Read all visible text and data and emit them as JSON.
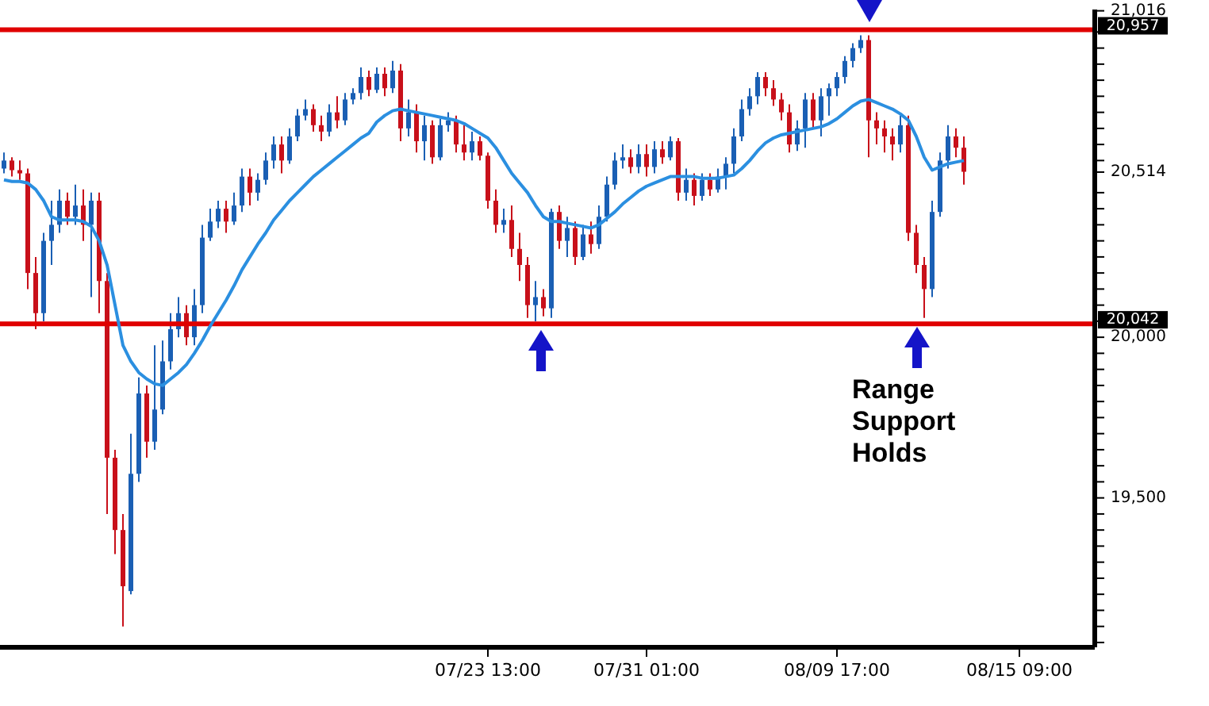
{
  "chart_data": {
    "type": "candlestick",
    "categories": [
      null,
      null,
      null,
      null,
      null,
      null,
      null,
      null,
      null,
      null,
      null,
      null,
      null,
      null,
      null,
      null,
      null,
      null,
      null,
      null,
      null,
      null,
      null,
      null,
      null,
      null,
      null,
      null,
      null,
      null,
      null,
      null,
      null,
      null,
      null,
      null,
      null,
      null,
      null,
      null,
      null,
      null,
      null,
      null,
      null,
      null,
      null,
      null,
      null,
      null,
      null,
      null,
      null,
      null,
      null,
      null,
      null,
      null,
      null,
      null,
      null,
      "07/23 13:00",
      null,
      null,
      null,
      null,
      null,
      null,
      null,
      null,
      null,
      null,
      null,
      null,
      null,
      null,
      null,
      null,
      null,
      null,
      null,
      "07/31 01:00",
      null,
      null,
      null,
      null,
      null,
      null,
      null,
      null,
      null,
      null,
      null,
      null,
      null,
      null,
      null,
      null,
      null,
      null,
      null,
      null,
      null,
      null,
      null,
      "08/09 17:00",
      null,
      null,
      null,
      null,
      null,
      null,
      null,
      null,
      null,
      null,
      null,
      null,
      null,
      null,
      null,
      null,
      null,
      null,
      null,
      null,
      null,
      null,
      "08/15 09:00",
      null,
      null,
      null,
      null,
      null,
      null,
      null,
      null,
      null
    ],
    "ohlc": [
      [
        20525,
        20575,
        20510,
        20550
      ],
      [
        20550,
        20560,
        20500,
        20520
      ],
      [
        20520,
        20550,
        20490,
        20510
      ],
      [
        20510,
        20525,
        20150,
        20200
      ],
      [
        20200,
        20250,
        20025,
        20075
      ],
      [
        20075,
        20325,
        20050,
        20300
      ],
      [
        20300,
        20425,
        20225,
        20350
      ],
      [
        20350,
        20460,
        20325,
        20425
      ],
      [
        20425,
        20450,
        20350,
        20375
      ],
      [
        20375,
        20475,
        20350,
        20410
      ],
      [
        20410,
        20460,
        20300,
        20350
      ],
      [
        20350,
        20450,
        20125,
        20425
      ],
      [
        20425,
        20450,
        20075,
        20175
      ],
      [
        20175,
        20200,
        19450,
        19625
      ],
      [
        19625,
        19650,
        19325,
        19400
      ],
      [
        19400,
        19450,
        19100,
        19225
      ],
      [
        19210,
        19700,
        19200,
        19575
      ],
      [
        19575,
        19875,
        19550,
        19825
      ],
      [
        19825,
        19850,
        19625,
        19675
      ],
      [
        19675,
        19975,
        19650,
        19775
      ],
      [
        19775,
        19990,
        19760,
        19925
      ],
      [
        19925,
        20075,
        19900,
        20025
      ],
      [
        20025,
        20125,
        20000,
        20075
      ],
      [
        20075,
        20100,
        19975,
        20000
      ],
      [
        20000,
        20150,
        19975,
        20100
      ],
      [
        20100,
        20350,
        20075,
        20310
      ],
      [
        20310,
        20400,
        20300,
        20360
      ],
      [
        20360,
        20425,
        20340,
        20400
      ],
      [
        20400,
        20425,
        20325,
        20360
      ],
      [
        20360,
        20450,
        20350,
        20410
      ],
      [
        20410,
        20525,
        20390,
        20500
      ],
      [
        20500,
        20525,
        20410,
        20450
      ],
      [
        20450,
        20510,
        20425,
        20490
      ],
      [
        20490,
        20575,
        20475,
        20550
      ],
      [
        20550,
        20625,
        20525,
        20600
      ],
      [
        20600,
        20625,
        20510,
        20550
      ],
      [
        20550,
        20650,
        20540,
        20625
      ],
      [
        20625,
        20710,
        20610,
        20690
      ],
      [
        20690,
        20740,
        20675,
        20710
      ],
      [
        20710,
        20725,
        20640,
        20660
      ],
      [
        20660,
        20690,
        20610,
        20640
      ],
      [
        20640,
        20725,
        20625,
        20700
      ],
      [
        20700,
        20750,
        20650,
        20675
      ],
      [
        20675,
        20760,
        20660,
        20740
      ],
      [
        20740,
        20775,
        20725,
        20760
      ],
      [
        20760,
        20840,
        20740,
        20810
      ],
      [
        20810,
        20830,
        20750,
        20770
      ],
      [
        20770,
        20840,
        20760,
        20820
      ],
      [
        20820,
        20840,
        20750,
        20775
      ],
      [
        20775,
        20860,
        20760,
        20830
      ],
      [
        20830,
        20850,
        20610,
        20650
      ],
      [
        20650,
        20740,
        20625,
        20700
      ],
      [
        20700,
        20725,
        20575,
        20610
      ],
      [
        20610,
        20690,
        20550,
        20660
      ],
      [
        20660,
        20675,
        20540,
        20560
      ],
      [
        20560,
        20680,
        20550,
        20660
      ],
      [
        20660,
        20700,
        20640,
        20675
      ],
      [
        20675,
        20690,
        20575,
        20600
      ],
      [
        20600,
        20660,
        20550,
        20575
      ],
      [
        20575,
        20640,
        20550,
        20610
      ],
      [
        20610,
        20625,
        20550,
        20565
      ],
      [
        20565,
        20575,
        20400,
        20425
      ],
      [
        20425,
        20460,
        20325,
        20350
      ],
      [
        20350,
        20400,
        20325,
        20365
      ],
      [
        20365,
        20410,
        20250,
        20275
      ],
      [
        20275,
        20325,
        20175,
        20225
      ],
      [
        20225,
        20250,
        20060,
        20100
      ],
      [
        20100,
        20175,
        20050,
        20125
      ],
      [
        20125,
        20150,
        20065,
        20090
      ],
      [
        20090,
        20400,
        20060,
        20390
      ],
      [
        20390,
        20410,
        20275,
        20300
      ],
      [
        20300,
        20375,
        20250,
        20340
      ],
      [
        20340,
        20360,
        20225,
        20250
      ],
      [
        20250,
        20350,
        20240,
        20320
      ],
      [
        20320,
        20360,
        20260,
        20290
      ],
      [
        20290,
        20410,
        20275,
        20375
      ],
      [
        20375,
        20500,
        20360,
        20475
      ],
      [
        20475,
        20575,
        20460,
        20550
      ],
      [
        20550,
        20600,
        20525,
        20560
      ],
      [
        20560,
        20585,
        20510,
        20530
      ],
      [
        20530,
        20600,
        20510,
        20570
      ],
      [
        20570,
        20600,
        20500,
        20530
      ],
      [
        20530,
        20610,
        20510,
        20585
      ],
      [
        20585,
        20610,
        20540,
        20560
      ],
      [
        20560,
        20625,
        20550,
        20610
      ],
      [
        20610,
        20620,
        20425,
        20450
      ],
      [
        20450,
        20525,
        20425,
        20490
      ],
      [
        20490,
        20510,
        20410,
        20440
      ],
      [
        20440,
        20510,
        20425,
        20490
      ],
      [
        20490,
        20510,
        20440,
        20460
      ],
      [
        20460,
        20525,
        20450,
        20500
      ],
      [
        20500,
        20560,
        20460,
        20540
      ],
      [
        20540,
        20650,
        20510,
        20625
      ],
      [
        20625,
        20740,
        20610,
        20710
      ],
      [
        20710,
        20775,
        20690,
        20750
      ],
      [
        20750,
        20825,
        20725,
        20810
      ],
      [
        20810,
        20825,
        20750,
        20775
      ],
      [
        20775,
        20800,
        20720,
        20740
      ],
      [
        20740,
        20760,
        20675,
        20700
      ],
      [
        20700,
        20725,
        20575,
        20600
      ],
      [
        20600,
        20675,
        20580,
        20650
      ],
      [
        20650,
        20760,
        20590,
        20740
      ],
      [
        20740,
        20760,
        20650,
        20675
      ],
      [
        20675,
        20775,
        20625,
        20750
      ],
      [
        20750,
        20790,
        20690,
        20775
      ],
      [
        20775,
        20825,
        20750,
        20810
      ],
      [
        20810,
        20875,
        20790,
        20860
      ],
      [
        20860,
        20915,
        20840,
        20900
      ],
      [
        20900,
        20940,
        20885,
        20925
      ],
      [
        20925,
        20940,
        20560,
        20675
      ],
      [
        20675,
        20700,
        20600,
        20650
      ],
      [
        20650,
        20675,
        20575,
        20625
      ],
      [
        20625,
        20650,
        20550,
        20600
      ],
      [
        20600,
        20690,
        20575,
        20660
      ],
      [
        20660,
        20690,
        20300,
        20325
      ],
      [
        20325,
        20350,
        20200,
        20225
      ],
      [
        20225,
        20250,
        20060,
        20150
      ],
      [
        20150,
        20425,
        20125,
        20390
      ],
      [
        20390,
        20575,
        20375,
        20550
      ],
      [
        20550,
        20660,
        20525,
        20625
      ],
      [
        20625,
        20650,
        20560,
        20590
      ],
      [
        20590,
        20625,
        20475,
        20515
      ],
      null,
      null,
      null,
      null,
      null,
      null,
      null,
      null,
      null,
      null,
      null,
      null,
      null,
      null,
      null,
      null
    ],
    "colors": [
      "#1a5fb4",
      "#c8101a",
      "#c8101a",
      "#c8101a",
      "#c8101a",
      "#1a5fb4",
      "#1a5fb4",
      "#1a5fb4",
      "#c8101a",
      "#1a5fb4",
      "#c8101a",
      "#1a5fb4",
      "#c8101a",
      "#c8101a",
      "#c8101a",
      "#c8101a",
      "#1a5fb4",
      "#1a5fb4",
      "#c8101a",
      "#1a5fb4",
      "#1a5fb4",
      "#1a5fb4",
      "#1a5fb4",
      "#c8101a",
      "#1a5fb4",
      "#1a5fb4",
      "#1a5fb4",
      "#1a5fb4",
      "#c8101a",
      "#1a5fb4",
      "#1a5fb4",
      "#c8101a",
      "#1a5fb4",
      "#1a5fb4",
      "#1a5fb4",
      "#c8101a",
      "#1a5fb4",
      "#1a5fb4",
      "#1a5fb4",
      "#c8101a",
      "#c8101a",
      "#1a5fb4",
      "#c8101a",
      "#1a5fb4",
      "#1a5fb4",
      "#1a5fb4",
      "#c8101a",
      "#1a5fb4",
      "#c8101a",
      "#1a5fb4",
      "#c8101a",
      "#1a5fb4",
      "#c8101a",
      "#1a5fb4",
      "#c8101a",
      "#1a5fb4",
      "#1a5fb4",
      "#c8101a",
      "#c8101a",
      "#1a5fb4",
      "#c8101a",
      "#c8101a",
      "#c8101a",
      "#1a5fb4",
      "#c8101a",
      "#c8101a",
      "#c8101a",
      "#1a5fb4",
      "#c8101a",
      "#1a5fb4",
      "#c8101a",
      "#1a5fb4",
      "#c8101a",
      "#1a5fb4",
      "#c8101a",
      "#1a5fb4",
      "#1a5fb4",
      "#1a5fb4",
      "#1a5fb4",
      "#c8101a",
      "#1a5fb4",
      "#c8101a",
      "#1a5fb4",
      "#c8101a",
      "#1a5fb4",
      "#c8101a",
      "#1a5fb4",
      "#c8101a",
      "#1a5fb4",
      "#c8101a",
      "#1a5fb4",
      "#1a5fb4",
      "#1a5fb4",
      "#1a5fb4",
      "#1a5fb4",
      "#1a5fb4",
      "#c8101a",
      "#c8101a",
      "#c8101a",
      "#c8101a",
      "#1a5fb4",
      "#1a5fb4",
      "#c8101a",
      "#1a5fb4",
      "#1a5fb4",
      "#1a5fb4",
      "#1a5fb4",
      "#1a5fb4",
      "#1a5fb4",
      "#c8101a",
      "#c8101a",
      "#c8101a",
      "#c8101a",
      "#1a5fb4",
      "#c8101a",
      "#c8101a",
      "#c8101a",
      "#1a5fb4",
      "#1a5fb4",
      "#1a5fb4",
      "#c8101a",
      "#c8101a",
      null,
      null,
      null,
      null,
      null,
      null,
      null,
      null,
      null,
      null,
      null,
      null,
      null,
      null,
      null,
      null
    ],
    "series": [
      {
        "type": "line",
        "color": "#2b8fe0",
        "values": [
          20490,
          20485,
          20485,
          20480,
          20460,
          20425,
          20375,
          20365,
          20365,
          20365,
          20360,
          20345,
          20300,
          20225,
          20100,
          19975,
          19925,
          19890,
          19870,
          19855,
          19850,
          19870,
          19890,
          19915,
          19950,
          19990,
          20035,
          20075,
          20115,
          20160,
          20210,
          20250,
          20290,
          20325,
          20365,
          20395,
          20425,
          20450,
          20475,
          20500,
          20520,
          20540,
          20560,
          20580,
          20600,
          20620,
          20635,
          20670,
          20690,
          20705,
          20710,
          20705,
          20700,
          20695,
          20690,
          20685,
          20680,
          20675,
          20665,
          20650,
          20635,
          20620,
          20590,
          20550,
          20510,
          20480,
          20450,
          20410,
          20375,
          20360,
          20360,
          20355,
          20350,
          20345,
          20340,
          20350,
          20370,
          20390,
          20415,
          20435,
          20455,
          20470,
          20480,
          20490,
          20500,
          20500,
          20500,
          20500,
          20495,
          20495,
          20495,
          20500,
          20505,
          20525,
          20550,
          20580,
          20605,
          20620,
          20630,
          20635,
          20640,
          20645,
          20650,
          20655,
          20665,
          20680,
          20700,
          20720,
          20735,
          20740,
          20730,
          20720,
          20710,
          20695,
          20675,
          20625,
          20560,
          20520,
          20530,
          20540,
          20545,
          20550,
          null,
          null,
          null,
          null,
          null,
          null,
          null,
          null,
          null,
          null,
          null,
          null,
          null,
          null,
          null,
          null
        ]
      }
    ],
    "ylim": [
      19035,
      21020
    ],
    "yticks": [
      {
        "value": 19050,
        "label": null
      },
      {
        "value": 19100,
        "label": null
      },
      {
        "value": 19150,
        "label": null
      },
      {
        "value": 19200,
        "label": null
      },
      {
        "value": 19250,
        "label": null
      },
      {
        "value": 19300,
        "label": null
      },
      {
        "value": 19350,
        "label": null
      },
      {
        "value": 19400,
        "label": null
      },
      {
        "value": 19450,
        "label": null
      },
      {
        "value": 19500,
        "label": "19,500"
      },
      {
        "value": 19550,
        "label": null
      },
      {
        "value": 19600,
        "label": null
      },
      {
        "value": 19650,
        "label": null
      },
      {
        "value": 19700,
        "label": null
      },
      {
        "value": 19750,
        "label": null
      },
      {
        "value": 19800,
        "label": null
      },
      {
        "value": 19850,
        "label": null
      },
      {
        "value": 19900,
        "label": null
      },
      {
        "value": 19950,
        "label": null
      },
      {
        "value": 20000,
        "label": "20,000"
      },
      {
        "value": 20050,
        "label": null
      },
      {
        "value": 20100,
        "label": null
      },
      {
        "value": 20150,
        "label": null
      },
      {
        "value": 20200,
        "label": null
      },
      {
        "value": 20250,
        "label": null
      },
      {
        "value": 20300,
        "label": null
      },
      {
        "value": 20350,
        "label": null
      },
      {
        "value": 20400,
        "label": null
      },
      {
        "value": 20450,
        "label": null
      },
      {
        "value": 20514,
        "label": "20,514"
      },
      {
        "value": 20550,
        "label": null
      },
      {
        "value": 20600,
        "label": null
      },
      {
        "value": 20650,
        "label": null
      },
      {
        "value": 20700,
        "label": null
      },
      {
        "value": 20750,
        "label": null
      },
      {
        "value": 20800,
        "label": null
      },
      {
        "value": 20850,
        "label": null
      },
      {
        "value": 20900,
        "label": null
      },
      {
        "value": 20950,
        "label": null
      },
      {
        "value": 21016,
        "label": "21,016"
      }
    ],
    "ref_lines": [
      {
        "axis": "y",
        "value": 20042,
        "label": "20,042",
        "color": "#e00000"
      },
      {
        "axis": "y",
        "value": 20957,
        "label": "20,957",
        "color": "#e00000"
      }
    ],
    "annotations": [
      "Range Support Holds"
    ]
  }
}
